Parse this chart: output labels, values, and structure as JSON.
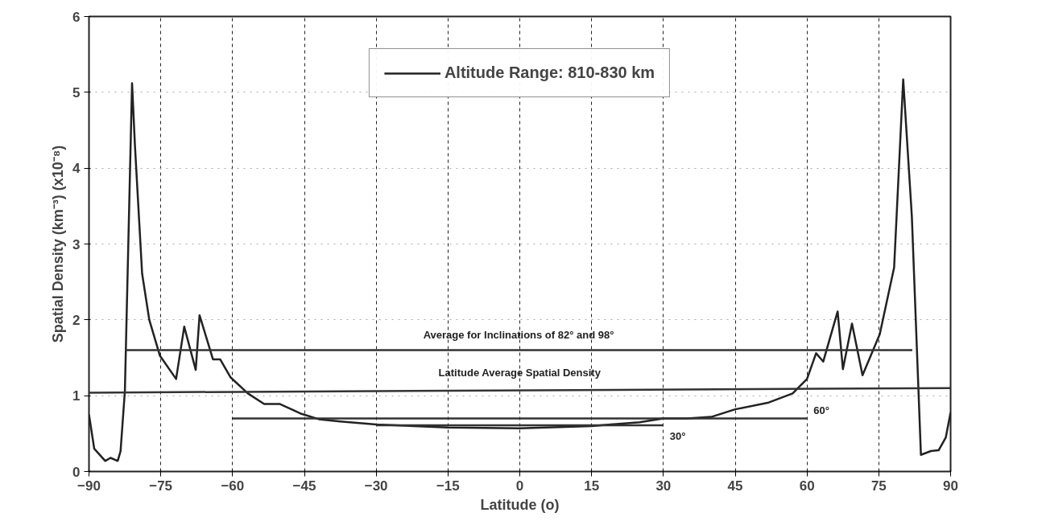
{
  "chart_data": {
    "type": "line",
    "xlabel": "Latitude (o)",
    "ylabel": "Spatial Density (km⁻³) (x10⁻⁸)",
    "xlim": [
      -90,
      90
    ],
    "xticks": [
      -90,
      -75,
      -60,
      -45,
      -30,
      -15,
      0,
      15,
      30,
      45,
      60,
      75,
      90
    ],
    "ylim": [
      0,
      6
    ],
    "yticks": [
      0,
      1,
      2,
      3,
      4,
      5,
      6
    ],
    "grid": true,
    "legend": "top",
    "line_style": "solid",
    "marker": "none",
    "series": [
      {
        "name": "Altitude Range: 810-830 km",
        "color": "#222222",
        "x": [
          -90,
          -88.9,
          -86.6,
          -85.5,
          -84,
          -83.4,
          -82.5,
          -81,
          -80.4,
          -78.9,
          -77.4,
          -75.2,
          -71.8,
          -70.1,
          -67.7,
          -66.9,
          -64.1,
          -62.6,
          -60.4,
          -56.8,
          -53.4,
          -50.1,
          -45.6,
          -42,
          -37.5,
          -30,
          -15,
          0,
          15,
          25,
          30,
          35,
          40,
          45,
          52,
          57,
          60,
          61.9,
          63.4,
          66.4,
          67.5,
          69.4,
          71.6,
          75.2,
          78.2,
          80.1,
          81.9,
          83.8,
          85.9,
          87.5,
          89,
          90
        ],
        "values": [
          0.75,
          0.3,
          0.14,
          0.18,
          0.14,
          0.27,
          1.06,
          5.12,
          4.3,
          2.61,
          2,
          1.53,
          1.22,
          1.91,
          1.34,
          2.06,
          1.48,
          1.48,
          1.24,
          1.03,
          0.89,
          0.89,
          0.76,
          0.69,
          0.66,
          0.62,
          0.58,
          0.57,
          0.6,
          0.65,
          0.7,
          0.7,
          0.72,
          0.82,
          0.91,
          1.03,
          1.22,
          1.56,
          1.45,
          2.11,
          1.35,
          1.95,
          1.27,
          1.81,
          2.69,
          5.17,
          3.37,
          0.22,
          0.27,
          0.28,
          0.45,
          0.78
        ]
      },
      {
        "name": "Average for Inclinations of 82° and 98°",
        "color": "#333333",
        "x": [
          -82.5,
          82
        ],
        "values": [
          1.6,
          1.6
        ]
      },
      {
        "name": "Latitude Average Spatial Density",
        "color": "#333333",
        "x": [
          -90,
          90
        ],
        "values": [
          1.04,
          1.1
        ]
      },
      {
        "name": "60°",
        "color": "#333333",
        "x": [
          -60,
          60
        ],
        "values": [
          0.7,
          0.7
        ]
      },
      {
        "name": "30°",
        "color": "#333333",
        "x": [
          -30,
          30
        ],
        "values": [
          0.61,
          0.61
        ]
      }
    ]
  }
}
